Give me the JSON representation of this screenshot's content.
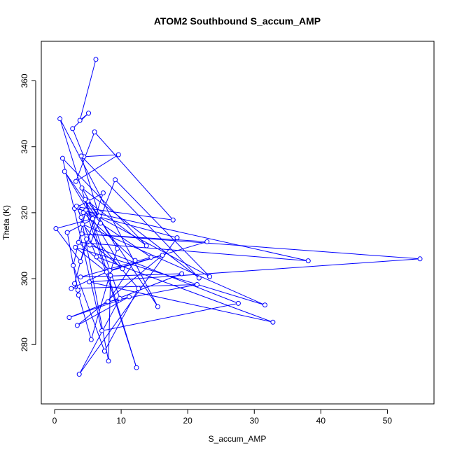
{
  "chart_data": {
    "type": "line",
    "title": "ATOM2 Southbound S_accum_AMP",
    "xlabel": "S_accum_AMP",
    "ylabel": "Theta (K)",
    "xlim": [
      -2,
      57
    ],
    "ylim": [
      262,
      372
    ],
    "xticks": [
      0,
      10,
      20,
      30,
      40,
      50
    ],
    "yticks": [
      280,
      300,
      320,
      340,
      360
    ],
    "grid": false,
    "legend": "none",
    "colors": {
      "series": "#0000ff",
      "axes": "#000000",
      "background": "#ffffff"
    },
    "series": [
      {
        "marker": "open-circle",
        "x": [
          6.2,
          3.8,
          5.1,
          2.7,
          4.4,
          9.6,
          3.2,
          6.0,
          17.8,
          3.5,
          5.7,
          0.2,
          3.9,
          7.3,
          3.0,
          38.1,
          3.6,
          8.3,
          22.9,
          4.1,
          54.9,
          5.2,
          32.8,
          6.3,
          3.3,
          4.0,
          8.1,
          8.4,
          3.1,
          31.6,
          4.2,
          12.6,
          7.5,
          2.8,
          5.0,
          15.5,
          0.8,
          12.3,
          4.7,
          23.3,
          9.1,
          5.3,
          27.6,
          7.1,
          1.2,
          13.8,
          4.6,
          9.8,
          3.7,
          18.4,
          4.3,
          12.1,
          8.0,
          21.4,
          2.5,
          7.8,
          16.2,
          3.4,
          11.2,
          2.2,
          19.1,
          3.9,
          14.5,
          6.9,
          1.5,
          10.2,
          4.8,
          3.0,
          3.6,
          5.5,
          9.4,
          4.1,
          21.7,
          4.0,
          6.7,
          1.9,
          3.5
        ],
        "y": [
          366.5,
          348.0,
          350.2,
          345.5,
          337.0,
          337.6,
          329.5,
          344.5,
          317.8,
          321.7,
          318.2,
          315.2,
          305.2,
          326.0,
          321.3,
          305.4,
          311.0,
          302.5,
          311.2,
          313.6,
          306.0,
          299.0,
          286.8,
          306.6,
          322.0,
          318.6,
          275.0,
          301.0,
          309.5,
          292.0,
          316.5,
          297.0,
          278.0,
          304.0,
          323.5,
          291.5,
          348.5,
          273.0,
          320.8,
          300.6,
          330.0,
          310.2,
          292.5,
          284.2,
          336.5,
          310.0,
          324.0,
          294.0,
          271.0,
          312.4,
          320.0,
          305.5,
          293.0,
          298.2,
          297.0,
          302.0,
          307.1,
          285.8,
          294.5,
          288.2,
          301.5,
          300.5,
          306.5,
          316.8,
          332.5,
          303.0,
          312.0,
          298.5,
          295.0,
          281.5,
          309.1,
          327.5,
          300.2,
          337.2,
          319.0,
          314.0,
          296.5
        ]
      }
    ]
  }
}
